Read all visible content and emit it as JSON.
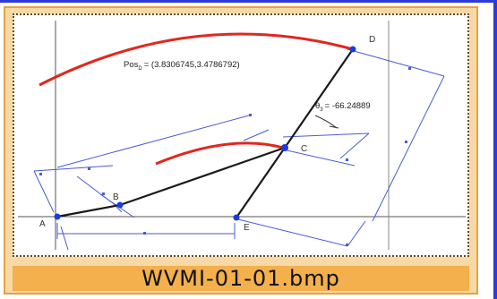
{
  "thumbnail": {
    "filename": "WVMI-01-01.bmp"
  },
  "diagram": {
    "points": {
      "A": "A",
      "B": "B",
      "C": "C",
      "D": "D",
      "E": "E"
    },
    "position_annotation": "Pos",
    "position_subscript": "D",
    "position_value": "= (3.8306745,3.4786792)",
    "angle_annotation": "= -66.24889",
    "angle_symbol": "θ",
    "angle_subscript": "3",
    "colors": {
      "linkage": "#1a1a1a",
      "dimension": "#4a5ad8",
      "arc": "#e0281e",
      "joint": "#1a3cdc",
      "border_accent": "#2e3bd6",
      "caption_background": "#f3b04d",
      "card_background": "#f6d9a6"
    }
  }
}
